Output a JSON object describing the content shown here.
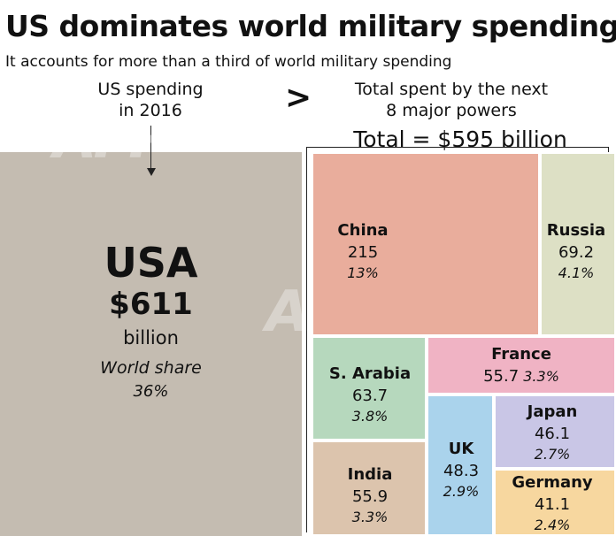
{
  "title": "US dominates world military spending",
  "subtitle": "It accounts for more than a third of world military spending",
  "header_left": [
    "US spending",
    "in 2016"
  ],
  "comparison_symbol": ">",
  "header_right": [
    "Total spent by the next",
    "8 major powers"
  ],
  "total_label": "Total = $595 billion",
  "watermark": "AFP",
  "chart_data": {
    "type": "treemap",
    "title": "US dominates world military spending",
    "subtitle": "It accounts for more than a third of world military spending",
    "unit": "billion",
    "usa": {
      "name": "USA",
      "value_label": "$611",
      "unit": "billion",
      "share_label": "World share",
      "share": "36%",
      "value": 611,
      "color": "#c4bcb1"
    },
    "others_total": 595,
    "others": [
      {
        "name": "China",
        "value": 215,
        "value_label": "215",
        "share": "13%",
        "color": "#e9ad9c"
      },
      {
        "name": "Russia",
        "value": 69.2,
        "value_label": "69.2",
        "share": "4.1%",
        "color": "#dde0c5"
      },
      {
        "name": "S. Arabia",
        "value": 63.7,
        "value_label": "63.7",
        "share": "3.8%",
        "color": "#b6d8bd"
      },
      {
        "name": "France",
        "value": 55.7,
        "value_label": "55.7",
        "share": "3.3%",
        "color": "#f0b3c4"
      },
      {
        "name": "India",
        "value": 55.9,
        "value_label": "55.9",
        "share": "3.3%",
        "color": "#dcc4ad"
      },
      {
        "name": "UK",
        "value": 48.3,
        "value_label": "48.3",
        "share": "2.9%",
        "color": "#aad3ec"
      },
      {
        "name": "Japan",
        "value": 46.1,
        "value_label": "46.1",
        "share": "2.7%",
        "color": "#c9c6e6"
      },
      {
        "name": "Germany",
        "value": 41.1,
        "value_label": "41.1",
        "share": "2.4%",
        "color": "#f7d79f"
      }
    ]
  }
}
